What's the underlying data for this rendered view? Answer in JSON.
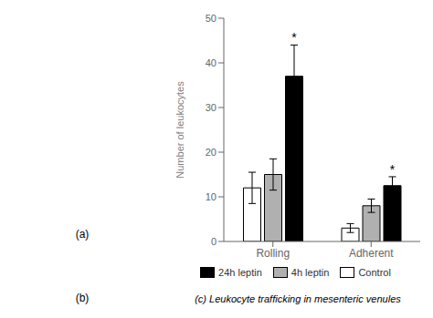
{
  "chart_data": {
    "type": "bar",
    "ylabel": "Number of leukocytes",
    "categories": [
      "Rolling",
      "Adherent"
    ],
    "series": [
      {
        "name": "Control",
        "color": "#ffffff",
        "values": [
          12,
          3
        ],
        "errors": [
          3.5,
          1.0
        ]
      },
      {
        "name": "4h leptin",
        "color": "#b0b0b0",
        "values": [
          15,
          8
        ],
        "errors": [
          3.5,
          1.5
        ]
      },
      {
        "name": "24h leptin",
        "color": "#000000",
        "values": [
          37,
          12.5
        ],
        "errors": [
          7.0,
          2.0
        ]
      }
    ],
    "ylim": [
      0,
      50
    ],
    "yticks": [
      0,
      10,
      20,
      30,
      40,
      50
    ],
    "annotations": [
      {
        "text": "*",
        "category": "Rolling",
        "series": "24h leptin"
      },
      {
        "text": "*",
        "category": "Adherent",
        "series": "24h leptin"
      },
      {
        "text": "(a)"
      },
      {
        "text": "(b)"
      },
      {
        "text": "(c) Leukocyte trafficking in mesenteric venules"
      }
    ]
  }
}
